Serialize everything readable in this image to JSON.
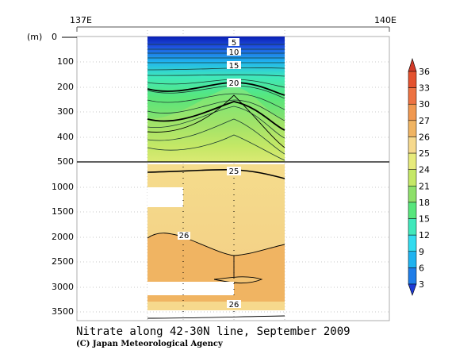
{
  "chart_data": {
    "type": "heatmap",
    "title": "Nitrate along 42-30N line, September 2009",
    "credit": "(C) Japan Meteorological Agency",
    "top_axis": {
      "ticks": [
        "137E",
        "140E"
      ]
    },
    "y_unit": "(m)",
    "y_ticks": [
      "0",
      "100",
      "200",
      "300",
      "400",
      "500",
      "1000",
      "1500",
      "2000",
      "2500",
      "3000",
      "3500"
    ],
    "colorbar": {
      "levels": [
        "3",
        "6",
        "9",
        "12",
        "15",
        "18",
        "21",
        "24",
        "25",
        "26",
        "27",
        "30",
        "33",
        "36"
      ],
      "colors": [
        "#1e3bd6",
        "#1f7de8",
        "#1fb3f0",
        "#31dcef",
        "#3fe8bb",
        "#57e67c",
        "#8ee06a",
        "#c5e866",
        "#e7eb7b",
        "#f6d98d",
        "#f0b462",
        "#f09850",
        "#ed7242",
        "#e4522f",
        "#d23a28"
      ]
    },
    "contour_labels": [
      "5",
      "10",
      "15",
      "20",
      "25",
      "26",
      "26",
      "26"
    ]
  }
}
